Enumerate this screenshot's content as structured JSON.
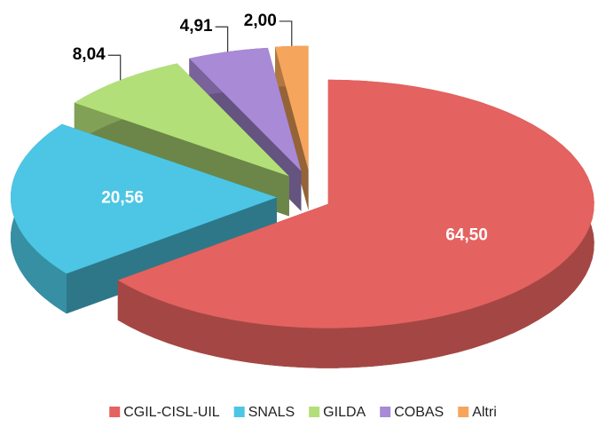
{
  "chart_data": {
    "type": "pie",
    "categories": [
      "CGIL-CISL-UIL",
      "SNALS",
      "GILDA",
      "COBAS",
      "Altri"
    ],
    "values": [
      64.5,
      20.56,
      8.04,
      4.91,
      2.0
    ],
    "value_labels": [
      "64,50",
      "20,56",
      "8,04",
      "4,91",
      "2,00"
    ],
    "colors": [
      "#e4625f",
      "#4cc6e4",
      "#b3df78",
      "#a88ad6",
      "#f6a55c"
    ],
    "legend": "bottom"
  }
}
